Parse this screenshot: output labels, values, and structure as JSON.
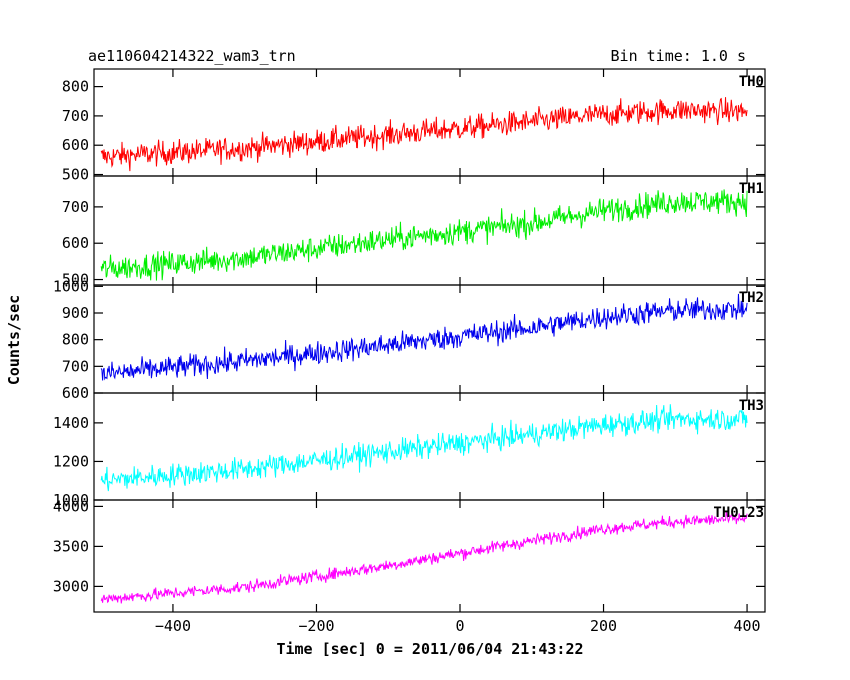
{
  "header": {
    "title": "ae110604214322_wam3_trn",
    "bin_time": "Bin time: 1.0 s"
  },
  "axes": {
    "xlabel": "Time [sec] 0 = 2011/06/04 21:43:22",
    "ylabel": "Counts/sec"
  },
  "chart_data": {
    "type": "line",
    "title": "ae110604214322_wam3_trn",
    "subtitle": "Bin time: 1.0 s",
    "xlabel": "Time [sec] 0 = 2011/06/04 21:43:22",
    "ylabel": "Counts/sec",
    "xlim": [
      -510,
      425
    ],
    "xticks": [
      -400,
      -200,
      0,
      200,
      400
    ],
    "grid": false,
    "panels": [
      {
        "name": "TH0",
        "color": "#ff0000",
        "ylim": [
          495,
          860
        ],
        "yticks": [
          500,
          600,
          700,
          800
        ],
        "trend": [
          {
            "x": -500,
            "y": 560
          },
          {
            "x": -300,
            "y": 590
          },
          {
            "x": -100,
            "y": 635
          },
          {
            "x": 100,
            "y": 680
          },
          {
            "x": 200,
            "y": 705
          },
          {
            "x": 300,
            "y": 720
          },
          {
            "x": 400,
            "y": 715
          }
        ],
        "noise": 38
      },
      {
        "name": "TH1",
        "color": "#00ee00",
        "ylim": [
          485,
          785
        ],
        "yticks": [
          500,
          600,
          700
        ],
        "trend": [
          {
            "x": -500,
            "y": 528
          },
          {
            "x": -300,
            "y": 560
          },
          {
            "x": -100,
            "y": 610
          },
          {
            "x": 100,
            "y": 655
          },
          {
            "x": 200,
            "y": 690
          },
          {
            "x": 300,
            "y": 715
          },
          {
            "x": 400,
            "y": 715
          }
        ],
        "noise": 32
      },
      {
        "name": "TH2",
        "color": "#0000ee",
        "ylim": [
          600,
          1005
        ],
        "yticks": [
          600,
          700,
          800,
          900,
          1000
        ],
        "trend": [
          {
            "x": -500,
            "y": 670
          },
          {
            "x": -300,
            "y": 720
          },
          {
            "x": -100,
            "y": 780
          },
          {
            "x": 100,
            "y": 845
          },
          {
            "x": 200,
            "y": 885
          },
          {
            "x": 300,
            "y": 910
          },
          {
            "x": 400,
            "y": 915
          }
        ],
        "noise": 40
      },
      {
        "name": "TH3",
        "color": "#00ffff",
        "ylim": [
          1000,
          1555
        ],
        "yticks": [
          1000,
          1200,
          1400
        ],
        "trend": [
          {
            "x": -500,
            "y": 1100
          },
          {
            "x": -300,
            "y": 1160
          },
          {
            "x": -100,
            "y": 1250
          },
          {
            "x": 100,
            "y": 1340
          },
          {
            "x": 200,
            "y": 1390
          },
          {
            "x": 300,
            "y": 1420
          },
          {
            "x": 400,
            "y": 1420
          }
        ],
        "noise": 55
      },
      {
        "name": "TH0123",
        "color": "#ff00ff",
        "ylim": [
          2680,
          4080
        ],
        "yticks": [
          3000,
          3500,
          4000
        ],
        "trend": [
          {
            "x": -500,
            "y": 2840
          },
          {
            "x": -300,
            "y": 2990
          },
          {
            "x": -100,
            "y": 3260
          },
          {
            "x": 100,
            "y": 3570
          },
          {
            "x": 200,
            "y": 3720
          },
          {
            "x": 300,
            "y": 3810
          },
          {
            "x": 400,
            "y": 3850
          }
        ],
        "noise": 70
      }
    ]
  }
}
